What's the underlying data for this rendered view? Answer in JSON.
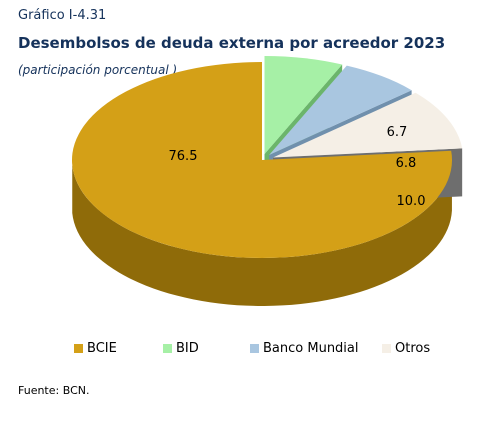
{
  "header": {
    "label": "Gráfico I-4.31",
    "title": "Desembolsos de deuda externa por acreedor 2023",
    "subtitle": "(participación porcentual )"
  },
  "chart_data": {
    "type": "pie",
    "style": "3d-exploded-tilted",
    "title": "Desembolsos de deuda externa por acreedor 2023",
    "subtitle": "(participación porcentual )",
    "categories": [
      "BCIE",
      "BID",
      "Banco Mundial",
      "Otros"
    ],
    "values": [
      76.5,
      6.7,
      6.8,
      10.0
    ],
    "value_labels": [
      "76.5",
      "6.7",
      "6.8",
      "10.0"
    ],
    "colors": [
      "#d4a017",
      "#a6f0a6",
      "#a9c6e0",
      "#f5efe6"
    ],
    "side_colors": [
      "#8f6b09",
      "#6bb56b",
      "#7090ad",
      "#6e6e6e"
    ],
    "legend_position": "bottom"
  },
  "legend": [
    {
      "label": "BCIE",
      "color": "#d4a017"
    },
    {
      "label": "BID",
      "color": "#a6f0a6"
    },
    {
      "label": "Banco Mundial",
      "color": "#a9c6e0"
    },
    {
      "label": "Otros",
      "color": "#f5efe6"
    }
  ],
  "source": "Fuente: BCN."
}
